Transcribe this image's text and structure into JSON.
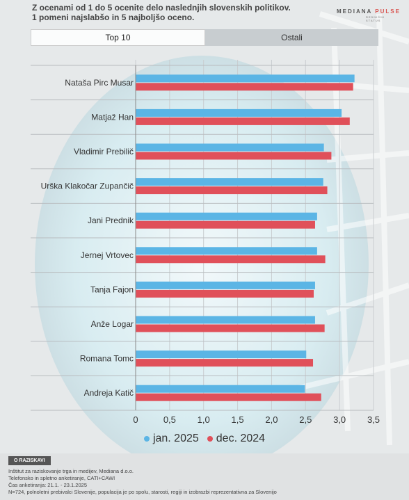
{
  "header": {
    "line1": "Z ocenami od 1 do 5 ocenite delo naslednjih slovenskih politikov.",
    "line2": "1 pomeni najslabšo in 5 najboljšo oceno."
  },
  "logo": {
    "brand": "MEDIANA",
    "product": "PULSE",
    "tagline": "RESNIČNI STATUS"
  },
  "tabs": [
    {
      "label": "Top 10",
      "active": true
    },
    {
      "label": "Ostali",
      "active": false
    }
  ],
  "colors": {
    "jan2025": "#5bb5e5",
    "dec2024": "#e0505a"
  },
  "chart_data": {
    "type": "bar",
    "orientation": "horizontal",
    "categories": [
      "Nataša Pirc Musar",
      "Matjaž Han",
      "Vladimir Prebilič",
      "Urška Klakočar Zupančič",
      "Jani Prednik",
      "Jernej Vrtovec",
      "Tanja Fajon",
      "Anže Logar",
      "Romana Tomc",
      "Andreja Katič"
    ],
    "series": [
      {
        "name": "jan. 2025",
        "values": [
          3.22,
          3.03,
          2.77,
          2.76,
          2.67,
          2.67,
          2.64,
          2.64,
          2.51,
          2.49
        ]
      },
      {
        "name": "dec. 2024",
        "values": [
          3.2,
          3.15,
          2.88,
          2.82,
          2.64,
          2.79,
          2.62,
          2.78,
          2.61,
          2.73
        ]
      }
    ],
    "xlim": [
      0,
      3.5
    ],
    "ticks": [
      "0",
      "0,5",
      "1,0",
      "1,5",
      "2,0",
      "2,5",
      "3,0",
      "3,5"
    ],
    "grid": true,
    "legend": "bottom"
  },
  "footer": {
    "about_label": "O RAZISKAVI",
    "lines": [
      "Inštitut za raziskovanje trga in medijev, Mediana d.o.o.",
      "Telefonsko in spletno anketiranje, CATI+CAWI",
      "Čas anketiranja: 21.1. - 23.1.2025",
      "N=724, polnoletni prebivalci Slovenije, populacija je po spolu, starosti, regiji in izobrazbi reprezentativna za Slovenijo"
    ]
  }
}
